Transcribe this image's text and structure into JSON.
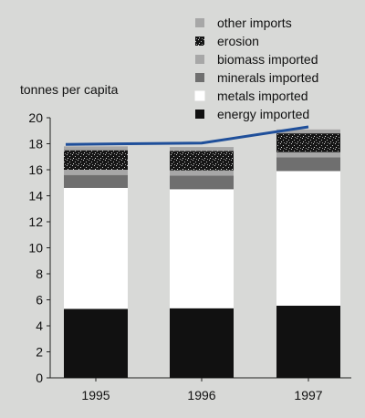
{
  "chart_data": {
    "type": "bar",
    "stacked": true,
    "ylabel": "tonnes per capita",
    "ylim": [
      0,
      20
    ],
    "yticks": [
      0,
      2,
      4,
      6,
      8,
      10,
      12,
      14,
      16,
      18,
      20
    ],
    "categories": [
      "1995",
      "1996",
      "1997"
    ],
    "series": [
      {
        "name": "energy imported",
        "color": "#111111",
        "pattern": "solid",
        "values": [
          5.3,
          5.35,
          5.55
        ]
      },
      {
        "name": "metals imported",
        "color": "#ffffff",
        "pattern": "solid",
        "values": [
          9.3,
          9.15,
          10.35
        ]
      },
      {
        "name": "minerals imported",
        "color": "#6f6f6f",
        "pattern": "solid",
        "values": [
          1.0,
          1.05,
          1.05
        ]
      },
      {
        "name": "biomass imported",
        "color": "#a7a7a7",
        "pattern": "solid",
        "values": [
          0.4,
          0.4,
          0.4
        ]
      },
      {
        "name": "erosion",
        "color": "#161616",
        "pattern": "speckle",
        "values": [
          1.5,
          1.5,
          1.45
        ]
      },
      {
        "name": "other imports",
        "color": "#a7a7a7",
        "pattern": "solid",
        "values": [
          0.3,
          0.3,
          0.3
        ]
      }
    ],
    "line": {
      "color": "#1f4f9a",
      "values": [
        17.95,
        18.05,
        19.3
      ]
    },
    "legend_position": "top-right",
    "grid": false
  }
}
